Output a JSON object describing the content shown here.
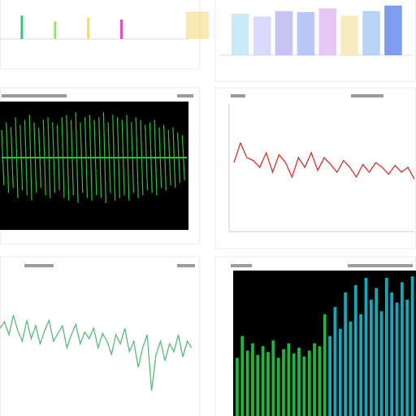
{
  "panels": [
    {
      "type": "bars",
      "colors": [
        "#2ecc71",
        "#9be36b",
        "#f2e34a",
        "#e04fbf",
        "#f5d46a"
      ],
      "values": [
        60,
        45,
        55,
        50,
        70
      ]
    },
    {
      "type": "gradient",
      "colors": [
        "#bfe4f5",
        "#cfd0f7",
        "#b9b4f2",
        "#a9b8f0",
        "#e0b8f0",
        "#f5e7b0",
        "#a6c8f2",
        "#5e86e8"
      ],
      "values": [
        75,
        70,
        80,
        78,
        85,
        72,
        80,
        90
      ]
    },
    {
      "type": "oscillo",
      "color": "#2fc23a",
      "values": [
        55,
        70,
        60,
        80,
        65,
        75,
        85,
        70,
        60,
        75,
        80,
        70,
        65,
        80,
        85,
        75,
        90,
        70,
        80,
        85,
        75,
        80,
        90,
        70,
        85,
        80,
        75,
        85,
        70,
        80,
        75,
        65,
        70,
        75,
        60,
        65,
        55,
        60,
        50,
        45
      ]
    },
    {
      "type": "line",
      "color": "#cc3333",
      "ylim": [
        0,
        100
      ],
      "values": [
        50,
        70,
        55,
        52,
        45,
        60,
        40,
        58,
        50,
        35,
        55,
        45,
        60,
        42,
        55,
        48,
        40,
        52,
        45,
        35,
        48,
        40,
        50,
        45,
        38,
        47,
        40,
        45,
        33
      ]
    },
    {
      "type": "line",
      "color": "#5cb87a",
      "ylim": [
        0,
        100
      ],
      "values": [
        60,
        65,
        55,
        70,
        58,
        50,
        66,
        52,
        62,
        48,
        58,
        66,
        50,
        56,
        62,
        45,
        55,
        63,
        48,
        57,
        52,
        60,
        45,
        56,
        50,
        40,
        55,
        48,
        60,
        42,
        50,
        30,
        45,
        55,
        12,
        40,
        50,
        35,
        48,
        42,
        55,
        38,
        50,
        45
      ]
    },
    {
      "type": "spikes",
      "colors": [
        "#27d34a",
        "#19c6d6"
      ],
      "values": [
        40,
        55,
        45,
        50,
        42,
        48,
        44,
        52,
        40,
        46,
        50,
        43,
        47,
        41,
        45,
        50,
        48,
        70,
        55,
        75,
        60,
        85,
        65,
        90,
        70,
        95,
        80,
        88,
        72,
        95,
        85,
        78,
        92,
        80,
        96
      ]
    }
  ]
}
